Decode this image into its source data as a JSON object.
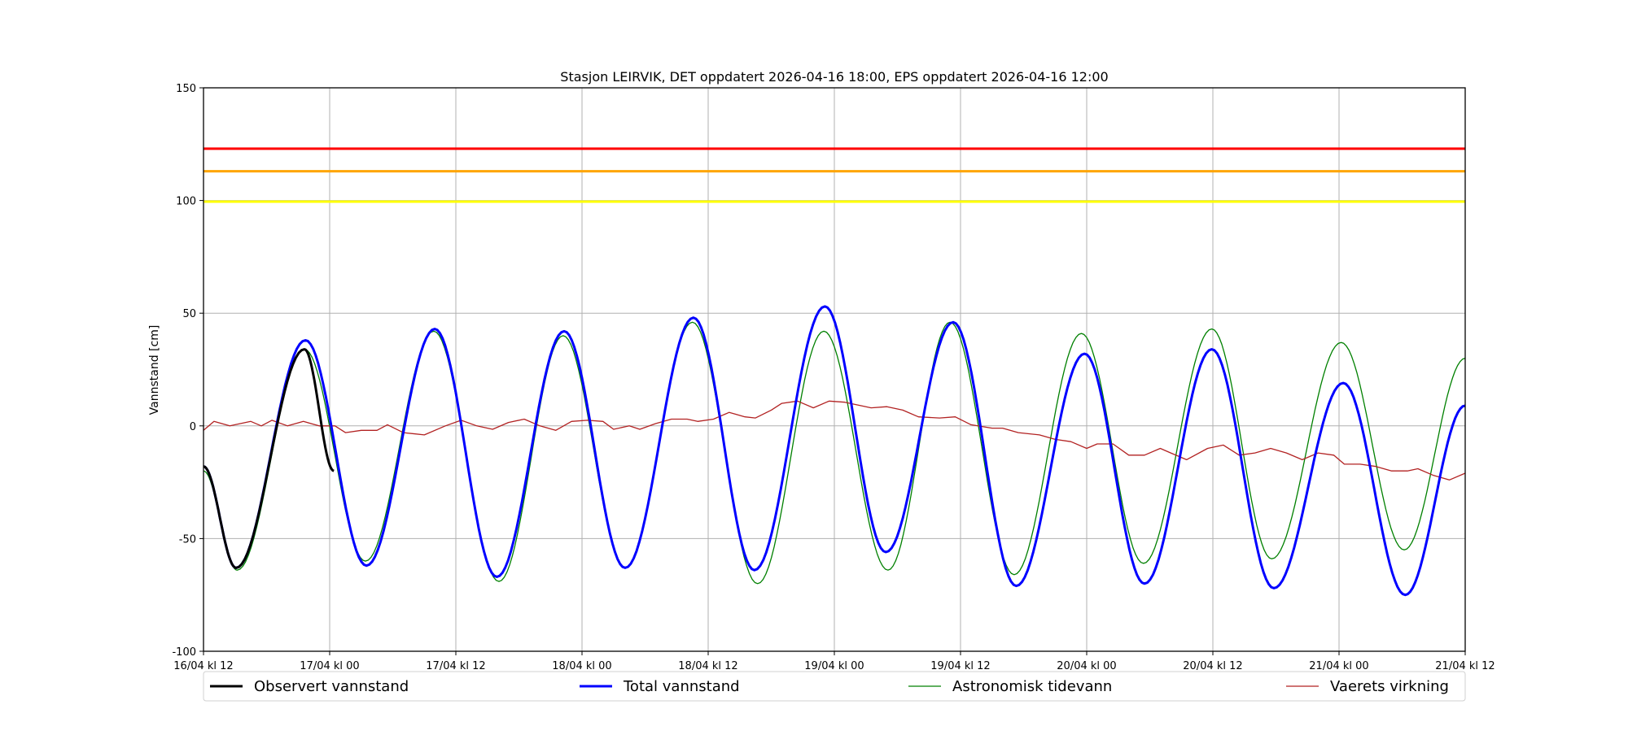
{
  "chart_data": {
    "type": "line",
    "title": "Stasjon LEIRVIK, DET oppdatert 2026-04-16 18:00, EPS oppdatert 2026-04-16 12:00",
    "xlabel": "",
    "ylabel": "Vannstand [cm]",
    "x_unit": "hours since 16/04 kl 12",
    "xlim": [
      0,
      120
    ],
    "ylim": [
      -100,
      150
    ],
    "grid": true,
    "x_ticks": [
      {
        "value": 0,
        "label": "16/04 kl 12"
      },
      {
        "value": 12,
        "label": "17/04 kl 00"
      },
      {
        "value": 24,
        "label": "17/04 kl 12"
      },
      {
        "value": 36,
        "label": "18/04 kl 00"
      },
      {
        "value": 48,
        "label": "18/04 kl 12"
      },
      {
        "value": 60,
        "label": "19/04 kl 00"
      },
      {
        "value": 72,
        "label": "19/04 kl 12"
      },
      {
        "value": 84,
        "label": "20/04 kl 00"
      },
      {
        "value": 96,
        "label": "20/04 kl 12"
      },
      {
        "value": 108,
        "label": "21/04 kl 00"
      },
      {
        "value": 120,
        "label": "21/04 kl 12"
      }
    ],
    "y_ticks": [
      -100,
      -50,
      0,
      50,
      100,
      150
    ],
    "thresholds": [
      {
        "value": 123,
        "color": "#ff0000"
      },
      {
        "value": 113,
        "color": "#ffa500"
      },
      {
        "value": 99.5,
        "color": "#ffff00"
      }
    ],
    "legend_position": "bottom",
    "series": [
      {
        "name": "Astronomisk tidevann",
        "color": "#008000",
        "width": 1.3,
        "interp": "cosine",
        "points": [
          [
            0,
            -20
          ],
          [
            3.2,
            -64
          ],
          [
            9.6,
            34
          ],
          [
            15.4,
            -60
          ],
          [
            21.9,
            42
          ],
          [
            28.1,
            -69
          ],
          [
            34.2,
            40
          ],
          [
            40.1,
            -63
          ],
          [
            46.5,
            46
          ],
          [
            52.7,
            -70
          ],
          [
            59,
            42
          ],
          [
            65.1,
            -64
          ],
          [
            71,
            46
          ],
          [
            77.1,
            -66
          ],
          [
            83.5,
            41
          ],
          [
            89.4,
            -61
          ],
          [
            95.9,
            43
          ],
          [
            101.6,
            -59
          ],
          [
            108.2,
            37
          ],
          [
            114.2,
            -55
          ],
          [
            120,
            30
          ]
        ]
      },
      {
        "name": "Vaerets virkning",
        "color": "#b22222",
        "width": 1.3,
        "interp": "linear",
        "points": [
          [
            0,
            -2
          ],
          [
            1,
            2
          ],
          [
            2.5,
            0
          ],
          [
            4.5,
            2
          ],
          [
            5.5,
            0
          ],
          [
            6.5,
            2.5
          ],
          [
            8,
            0
          ],
          [
            9.5,
            2
          ],
          [
            11,
            0
          ],
          [
            12.5,
            0
          ],
          [
            13.5,
            -3
          ],
          [
            15,
            -2
          ],
          [
            16.5,
            -2
          ],
          [
            17.5,
            0.5
          ],
          [
            19,
            -3
          ],
          [
            21,
            -4
          ],
          [
            23,
            0
          ],
          [
            24.5,
            2.5
          ],
          [
            26,
            0
          ],
          [
            27.5,
            -1.5
          ],
          [
            29,
            1.5
          ],
          [
            30.5,
            3
          ],
          [
            32,
            0
          ],
          [
            33.5,
            -2
          ],
          [
            35,
            2
          ],
          [
            36.5,
            2.5
          ],
          [
            38,
            2
          ],
          [
            39,
            -1.5
          ],
          [
            40.5,
            0
          ],
          [
            41.5,
            -1.5
          ],
          [
            43,
            1
          ],
          [
            44.5,
            3
          ],
          [
            46,
            3
          ],
          [
            47,
            2
          ],
          [
            48.5,
            3
          ],
          [
            50,
            6
          ],
          [
            51.5,
            4
          ],
          [
            52.5,
            3.5
          ],
          [
            54,
            7
          ],
          [
            55,
            10
          ],
          [
            56.5,
            11
          ],
          [
            58,
            8
          ],
          [
            59.5,
            11
          ],
          [
            61,
            10.5
          ],
          [
            62.5,
            9
          ],
          [
            63.5,
            8
          ],
          [
            65,
            8.5
          ],
          [
            66.5,
            7
          ],
          [
            68,
            4
          ],
          [
            70,
            3.5
          ],
          [
            71.5,
            4
          ],
          [
            73,
            0.5
          ],
          [
            75,
            -1
          ],
          [
            76,
            -1
          ],
          [
            77.5,
            -3
          ],
          [
            79.5,
            -4
          ],
          [
            81,
            -6
          ],
          [
            82.5,
            -7
          ],
          [
            84,
            -10
          ],
          [
            85,
            -8
          ],
          [
            86.5,
            -8
          ],
          [
            88,
            -13
          ],
          [
            89.5,
            -13
          ],
          [
            91,
            -10
          ],
          [
            92,
            -12
          ],
          [
            93.5,
            -15
          ],
          [
            95.5,
            -10
          ],
          [
            97,
            -8.5
          ],
          [
            98.5,
            -13
          ],
          [
            100,
            -12
          ],
          [
            101.5,
            -10
          ],
          [
            103,
            -12
          ],
          [
            104.5,
            -15
          ],
          [
            106,
            -12
          ],
          [
            107.5,
            -13
          ],
          [
            108.5,
            -17
          ],
          [
            110,
            -17
          ],
          [
            111.5,
            -18
          ],
          [
            113,
            -20
          ],
          [
            114.5,
            -20
          ],
          [
            115.5,
            -19
          ],
          [
            117,
            -22
          ],
          [
            118.5,
            -24
          ],
          [
            120,
            -21
          ]
        ]
      },
      {
        "name": "Total vannstand",
        "color": "#0000ff",
        "width": 3,
        "interp": "cosine",
        "points": [
          [
            0,
            -18
          ],
          [
            3.1,
            -63
          ],
          [
            9.7,
            38
          ],
          [
            15.5,
            -62
          ],
          [
            22,
            43
          ],
          [
            27.9,
            -67
          ],
          [
            34.3,
            42
          ],
          [
            40.1,
            -63
          ],
          [
            46.6,
            48
          ],
          [
            52.4,
            -64
          ],
          [
            59.1,
            53
          ],
          [
            64.9,
            -56
          ],
          [
            71.3,
            46
          ],
          [
            77.3,
            -71
          ],
          [
            83.8,
            32
          ],
          [
            89.5,
            -70
          ],
          [
            95.9,
            34
          ],
          [
            101.8,
            -72
          ],
          [
            108.4,
            19
          ],
          [
            114.3,
            -75
          ],
          [
            120,
            9
          ]
        ]
      },
      {
        "name": "Observert vannstand",
        "color": "#000000",
        "width": 3,
        "interp": "cosine",
        "points": [
          [
            0,
            -18
          ],
          [
            3.1,
            -63
          ],
          [
            9.6,
            34
          ],
          [
            12.4,
            -20
          ]
        ]
      }
    ],
    "legend_order": [
      "Observert vannstand",
      "Total vannstand",
      "Astronomisk tidevann",
      "Vaerets virkning"
    ]
  }
}
